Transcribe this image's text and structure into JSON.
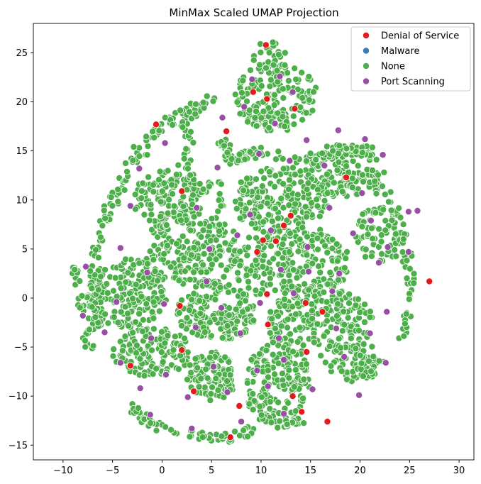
{
  "chart_data": {
    "type": "scatter",
    "title": "MinMax Scaled UMAP Projection",
    "xlabel": "",
    "ylabel": "",
    "xlim": [
      -13,
      31.5
    ],
    "ylim": [
      -16.5,
      28
    ],
    "xticks": [
      -10,
      -5,
      0,
      5,
      10,
      15,
      20,
      25,
      30
    ],
    "yticks": [
      -15,
      -10,
      -5,
      0,
      5,
      10,
      15,
      20,
      25
    ],
    "grid": false,
    "legend_position": "top-right",
    "series": [
      {
        "name": "Denial of Service",
        "color": "#e41a1c",
        "points": [
          [
            -0.6,
            17.7
          ],
          [
            10.5,
            25.8
          ],
          [
            9.2,
            21.0
          ],
          [
            10.6,
            20.3
          ],
          [
            13.4,
            19.3
          ],
          [
            6.5,
            17.0
          ],
          [
            18.6,
            12.3
          ],
          [
            2.0,
            10.9
          ],
          [
            13.0,
            8.4
          ],
          [
            12.3,
            7.4
          ],
          [
            10.2,
            5.9
          ],
          [
            11.5,
            5.8
          ],
          [
            9.6,
            4.7
          ],
          [
            27.0,
            1.7
          ],
          [
            10.6,
            0.4
          ],
          [
            14.5,
            -0.5
          ],
          [
            16.2,
            -1.4
          ],
          [
            1.8,
            -0.8
          ],
          [
            10.7,
            -2.7
          ],
          [
            2.0,
            -5.3
          ],
          [
            14.6,
            -5.5
          ],
          [
            -3.2,
            -6.9
          ],
          [
            13.2,
            -10.0
          ],
          [
            7.8,
            -11.0
          ],
          [
            14.1,
            -11.6
          ],
          [
            6.9,
            -14.2
          ],
          [
            16.7,
            -12.6
          ],
          [
            3.2,
            -9.5
          ]
        ]
      },
      {
        "name": "Malware",
        "color": "#377eb8",
        "points": []
      },
      {
        "name": "None",
        "color": "#4daf4a",
        "points": []
      },
      {
        "name": "Port Scanning",
        "color": "#984ea3",
        "points": [
          [
            9.1,
            22.3
          ],
          [
            11.9,
            22.6
          ],
          [
            13.2,
            21.0
          ],
          [
            8.3,
            19.5
          ],
          [
            6.1,
            18.4
          ],
          [
            11.4,
            17.8
          ],
          [
            17.8,
            17.1
          ],
          [
            14.6,
            16.1
          ],
          [
            20.5,
            16.2
          ],
          [
            22.3,
            14.6
          ],
          [
            0.3,
            15.8
          ],
          [
            -2.3,
            13.2
          ],
          [
            5.6,
            13.3
          ],
          [
            9.8,
            14.7
          ],
          [
            12.9,
            14.0
          ],
          [
            16.4,
            13.5
          ],
          [
            20.2,
            10.7
          ],
          [
            24.9,
            8.8
          ],
          [
            25.8,
            8.9
          ],
          [
            -3.2,
            9.4
          ],
          [
            3.5,
            9.2
          ],
          [
            8.9,
            8.5
          ],
          [
            16.9,
            9.2
          ],
          [
            21.1,
            7.9
          ],
          [
            -4.2,
            5.1
          ],
          [
            4.8,
            5.0
          ],
          [
            7.6,
            6.4
          ],
          [
            11.0,
            6.9
          ],
          [
            14.7,
            5.2
          ],
          [
            19.3,
            6.6
          ],
          [
            22.8,
            5.2
          ],
          [
            24.9,
            4.7
          ],
          [
            -7.7,
            3.2
          ],
          [
            -1.5,
            2.6
          ],
          [
            4.5,
            1.7
          ],
          [
            12.0,
            2.9
          ],
          [
            14.8,
            2.7
          ],
          [
            17.9,
            2.5
          ],
          [
            21.9,
            3.6
          ],
          [
            -8.0,
            -1.8
          ],
          [
            -4.6,
            -0.4
          ],
          [
            0.2,
            -0.6
          ],
          [
            6.0,
            -1.0
          ],
          [
            9.9,
            -0.5
          ],
          [
            13.3,
            0.5
          ],
          [
            17.2,
            0.7
          ],
          [
            22.7,
            -1.4
          ],
          [
            -5.8,
            -3.5
          ],
          [
            -1.1,
            -4.1
          ],
          [
            3.4,
            -3.0
          ],
          [
            7.9,
            -3.6
          ],
          [
            11.8,
            -4.1
          ],
          [
            17.6,
            -3.1
          ],
          [
            21.0,
            -3.6
          ],
          [
            -4.2,
            -6.6
          ],
          [
            0.4,
            -7.8
          ],
          [
            5.2,
            -7.0
          ],
          [
            9.6,
            -7.4
          ],
          [
            12.3,
            -6.3
          ],
          [
            18.4,
            -6.0
          ],
          [
            22.6,
            -6.6
          ],
          [
            -2.2,
            -9.2
          ],
          [
            2.6,
            -10.1
          ],
          [
            6.6,
            -9.6
          ],
          [
            10.7,
            -9.0
          ],
          [
            15.2,
            -9.3
          ],
          [
            19.9,
            -9.9
          ],
          [
            -1.2,
            -11.9
          ],
          [
            3.0,
            -13.3
          ],
          [
            8.0,
            -12.6
          ],
          [
            12.3,
            -11.8
          ],
          [
            16.7,
            -12.6
          ]
        ]
      }
    ]
  },
  "legend": {
    "items": [
      {
        "label": "Denial of Service",
        "color": "#e41a1c"
      },
      {
        "label": "Malware",
        "color": "#377eb8"
      },
      {
        "label": "None",
        "color": "#4daf4a"
      },
      {
        "label": "Port Scanning",
        "color": "#984ea3"
      }
    ]
  }
}
